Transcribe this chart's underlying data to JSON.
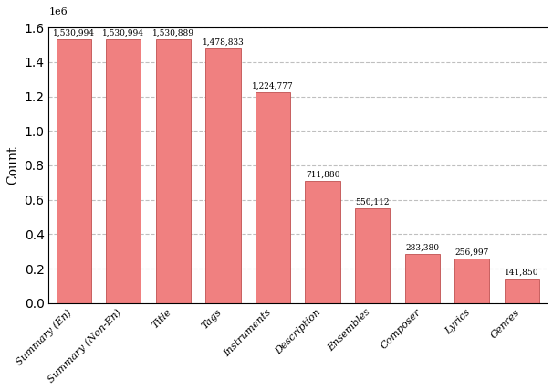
{
  "categories": [
    "Summary (En)",
    "Summary (Non-En)",
    "Title",
    "Tags",
    "Instruments",
    "Description",
    "Ensembles",
    "Composer",
    "Lyrics",
    "Genres"
  ],
  "values": [
    1530994,
    1530994,
    1530889,
    1478833,
    1224777,
    711880,
    550112,
    283380,
    256997,
    141850
  ],
  "labels": [
    "1,530,994",
    "1,530,994",
    "1,530,889",
    "1,478,833",
    "1,224,777",
    "711,880",
    "550,112",
    "283,380",
    "256,997",
    "141,850"
  ],
  "bar_color": "#F08080",
  "bar_edgecolor": "#c05050",
  "ylabel": "Count",
  "ylim_max": 1600000.0,
  "yticks": [
    0.0,
    0.2,
    0.4,
    0.6,
    0.8,
    1.0,
    1.2,
    1.4,
    1.6
  ],
  "grid_color": "#b0b0b0",
  "background_color": "#ffffff"
}
